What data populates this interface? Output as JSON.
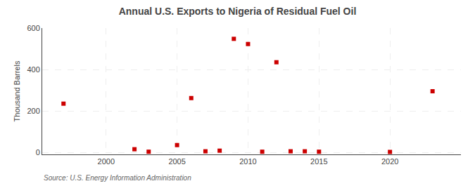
{
  "chart_data": {
    "type": "scatter",
    "title": "Annual U.S. Exports to Nigeria of Residual Fuel Oil",
    "ylabel": "Thousand Barrels",
    "source": "Source: U.S. Energy Information Administration",
    "x": [
      1997,
      2002,
      2003,
      2005,
      2006,
      2007,
      2008,
      2009,
      2010,
      2011,
      2012,
      2013,
      2014,
      2015,
      2020,
      2023
    ],
    "values": [
      235,
      15,
      3,
      35,
      262,
      5,
      8,
      548,
      523,
      3,
      435,
      5,
      5,
      3,
      2,
      295
    ],
    "color": "#cc0000",
    "marker": "square",
    "xlim": [
      1995.5,
      2025
    ],
    "ylim": [
      -10,
      600
    ],
    "xticks": [
      2000,
      2005,
      2010,
      2015,
      2020
    ],
    "yticks": [
      0,
      200,
      400,
      600
    ],
    "grid": true
  }
}
